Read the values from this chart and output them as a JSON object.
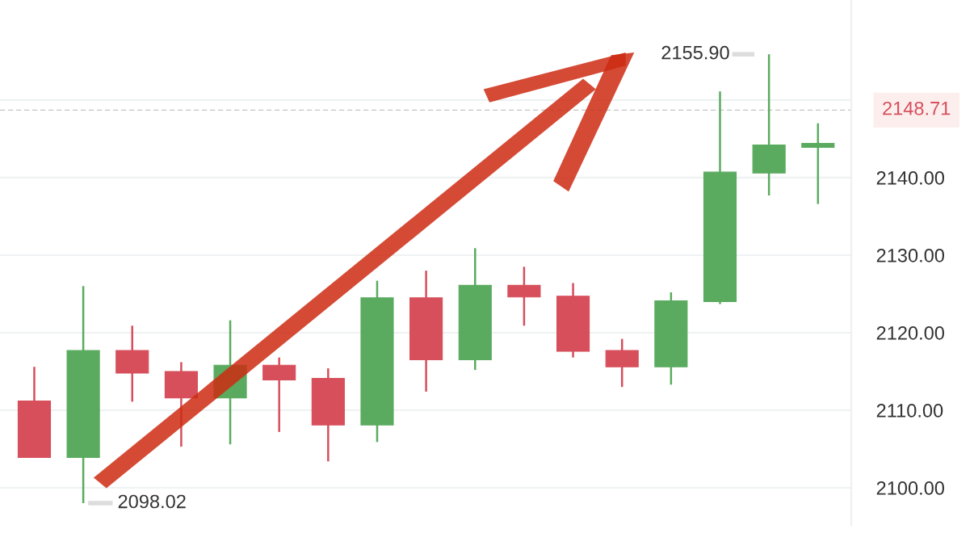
{
  "chart_data": {
    "type": "candlestick",
    "categories": [
      null,
      null,
      null,
      null,
      null,
      null,
      null,
      null,
      null,
      null,
      null,
      null,
      null,
      null,
      null,
      null,
      null
    ],
    "ohlc": [
      [
        2111.2,
        2115.6,
        2103.9,
        2103.9
      ],
      [
        2103.9,
        2126.0,
        2098.02,
        2117.7
      ],
      [
        2117.7,
        2120.9,
        2111.1,
        2114.8
      ],
      [
        2115.0,
        2116.2,
        2105.3,
        2111.6
      ],
      [
        2111.6,
        2121.6,
        2105.6,
        2115.8
      ],
      [
        2115.8,
        2116.8,
        2107.2,
        2113.9
      ],
      [
        2114.1,
        2115.4,
        2103.4,
        2108.1
      ],
      [
        2108.1,
        2126.7,
        2105.9,
        2124.5
      ],
      [
        2124.5,
        2128.0,
        2112.4,
        2116.5
      ],
      [
        2116.5,
        2130.9,
        2115.2,
        2126.1
      ],
      [
        2126.1,
        2128.5,
        2120.9,
        2124.6
      ],
      [
        2124.7,
        2126.4,
        2116.8,
        2117.6
      ],
      [
        2117.7,
        2119.2,
        2113.0,
        2115.6
      ],
      [
        2115.6,
        2125.2,
        2113.3,
        2124.1
      ],
      [
        2124.0,
        2151.1,
        2123.7,
        2140.7
      ],
      [
        2140.6,
        2155.9,
        2137.7,
        2144.2
      ],
      [
        2143.9,
        2147.0,
        2136.6,
        2144.4
      ]
    ],
    "colors": [
      "#d64f5b",
      "#5aab5f",
      "#d64f5b",
      "#d64f5b",
      "#5aab5f",
      "#d64f5b",
      "#d64f5b",
      "#5aab5f",
      "#d64f5b",
      "#5aab5f",
      "#d64f5b",
      "#d64f5b",
      "#d64f5b",
      "#5aab5f",
      "#5aab5f",
      "#5aab5f",
      "#5aab5f"
    ],
    "ylim": [
      2095.2,
      2162.9
    ],
    "yticks": [
      {
        "value": 2100,
        "label": "2100.00"
      },
      {
        "value": 2110,
        "label": "2110.00"
      },
      {
        "value": 2120,
        "label": "2120.00"
      },
      {
        "value": 2130,
        "label": "2130.00"
      },
      {
        "value": 2140,
        "label": "2140.00"
      },
      {
        "value": 2150,
        "label": null
      }
    ],
    "tick_labels": "y",
    "grid": "y",
    "ref_lines": [
      {
        "axis": "y",
        "value": 2148.71,
        "label": "2148.71",
        "color": "#c4c4c4",
        "line_style": "dashed"
      }
    ],
    "annotations": [
      "2155.90",
      "2098.02"
    ]
  }
}
